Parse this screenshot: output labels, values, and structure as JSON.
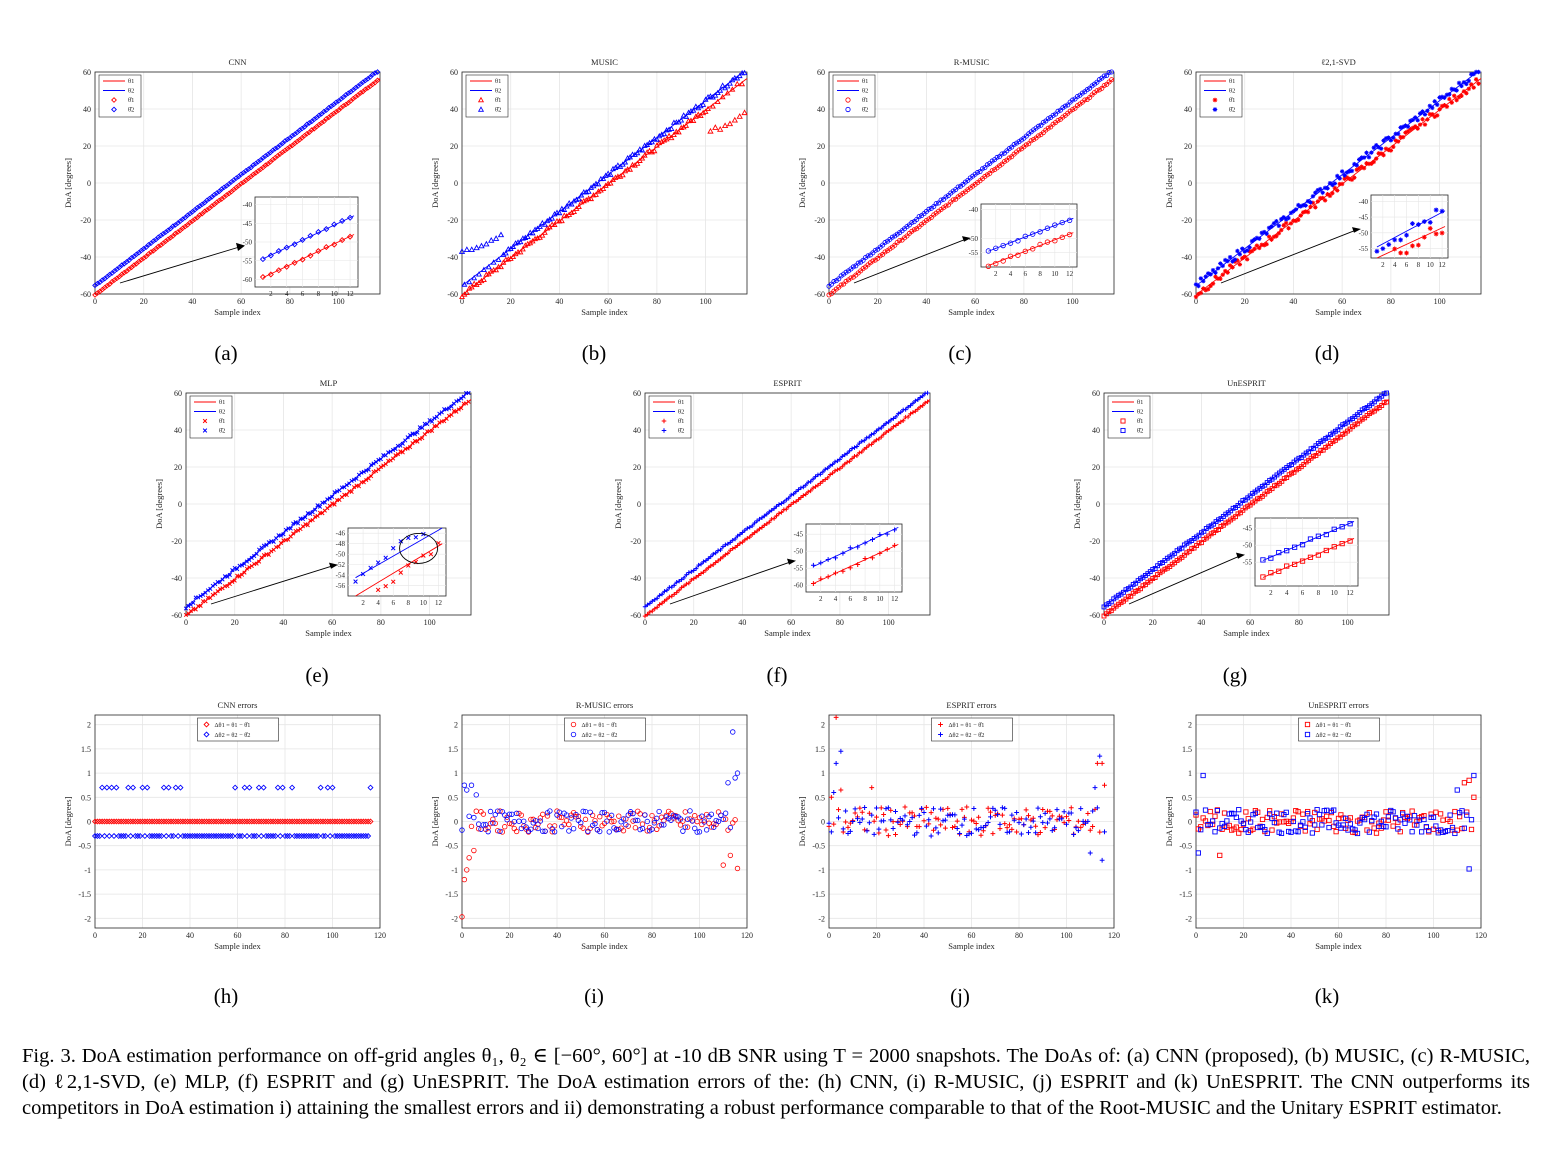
{
  "figure": {
    "caption": "Fig. 3.    DoA estimation performance on off-grid angles θ₁, θ₂ ∈ [−60°, 60°] at -10 dB SNR using T = 2000 snapshots. The DoAs of: (a) CNN (proposed), (b) MUSIC, (c) R-MUSIC, (d) ℓ2,1-SVD, (e) MLP, (f) ESPRIT and (g) UnESPRIT. The DoA estimation errors of the: (h) CNN, (i) R-MUSIC, (j) ESPRIT and (k) UnESPRIT. The CNN outperforms its competitors in DoA estimation i) attaining the smallest errors and ii) demonstrating a robust performance comparable to that of the Root-MUSIC and the Unitary ESPRIT estimator."
  },
  "colors": {
    "theta1": "#ff0000",
    "theta2": "#0000ff",
    "grid": "#e6e6e6",
    "axis": "#262626"
  },
  "chart_data": [
    {
      "panel": "(a)",
      "type": "scatter",
      "title": "CNN",
      "xlabel": "Sample index",
      "ylabel": "DoA [degrees]",
      "xlim": [
        0,
        117
      ],
      "ylim": [
        -60,
        60
      ],
      "xticks": [
        0,
        20,
        40,
        60,
        80,
        100
      ],
      "yticks": [
        -60,
        -40,
        -20,
        0,
        20,
        40,
        60
      ],
      "marker": "diamond",
      "legend": [
        "θ1",
        "θ2",
        "θ̂1",
        "θ̂2"
      ],
      "legend_position": "top-left",
      "series": [
        {
          "name": "θ1",
          "slope": 1.0,
          "intercept": -60.5,
          "noise": 0.2
        },
        {
          "name": "θ2",
          "slope": 1.0,
          "intercept": -55.5,
          "noise": 0.2
        }
      ],
      "inset": {
        "xlim": [
          0,
          13
        ],
        "ylim": [
          -62,
          -38
        ],
        "xticks": [
          2,
          4,
          6,
          8,
          10,
          12
        ],
        "yticks": [
          -40,
          -45,
          -50,
          -55,
          -60
        ]
      }
    },
    {
      "panel": "(b)",
      "type": "scatter",
      "title": "MUSIC",
      "xlabel": "Sample index",
      "ylabel": "DoA [degrees]",
      "xlim": [
        0,
        117
      ],
      "ylim": [
        -60,
        60
      ],
      "xticks": [
        0,
        20,
        40,
        60,
        80,
        100
      ],
      "yticks": [
        -60,
        -40,
        -20,
        0,
        20,
        40,
        60
      ],
      "marker": "triangle",
      "legend": [
        "θ1",
        "θ2",
        "θ̂1",
        "θ̂2"
      ],
      "legend_position": "top-left",
      "series": [
        {
          "name": "θ1",
          "slope": 1.0,
          "intercept": -60.5,
          "noise": 1.2,
          "outliers": [
            [
              102,
              28
            ],
            [
              104,
              30
            ],
            [
              106,
              29
            ],
            [
              108,
              31
            ],
            [
              110,
              32
            ],
            [
              112,
              34
            ],
            [
              114,
              36
            ],
            [
              116,
              38
            ]
          ]
        },
        {
          "name": "θ2",
          "slope": 1.0,
          "intercept": -55.5,
          "noise": 1.2,
          "outliers": [
            [
              0,
              -37
            ],
            [
              2,
              -36
            ],
            [
              4,
              -36
            ],
            [
              6,
              -35
            ],
            [
              8,
              -34
            ],
            [
              10,
              -33
            ],
            [
              12,
              -31
            ],
            [
              14,
              -30
            ],
            [
              16,
              -28
            ]
          ]
        }
      ]
    },
    {
      "panel": "(c)",
      "type": "scatter",
      "title": "R-MUSIC",
      "xlabel": "Sample index",
      "ylabel": "DoA [degrees]",
      "xlim": [
        0,
        117
      ],
      "ylim": [
        -60,
        60
      ],
      "xticks": [
        0,
        20,
        40,
        60,
        80,
        100
      ],
      "yticks": [
        -60,
        -40,
        -20,
        0,
        20,
        40,
        60
      ],
      "marker": "circle",
      "legend": [
        "θ1",
        "θ2",
        "θ̂1",
        "θ̂2"
      ],
      "legend_position": "top-left",
      "series": [
        {
          "name": "θ1",
          "slope": 1.0,
          "intercept": -60.5,
          "noise": 0.4
        },
        {
          "name": "θ2",
          "slope": 1.0,
          "intercept": -55.5,
          "noise": 0.4
        }
      ],
      "inset": {
        "xlim": [
          0,
          13
        ],
        "ylim": [
          -60,
          -38
        ],
        "xticks": [
          2,
          4,
          6,
          8,
          10,
          12
        ],
        "yticks": [
          -40,
          -50,
          -55
        ]
      }
    },
    {
      "panel": "(d)",
      "type": "scatter",
      "title": "ℓ2,1-SVD",
      "xlabel": "Sample index",
      "ylabel": "DoA [degrees]",
      "xlim": [
        0,
        117
      ],
      "ylim": [
        -60,
        60
      ],
      "xticks": [
        0,
        20,
        40,
        60,
        80,
        100
      ],
      "yticks": [
        -60,
        -40,
        -20,
        0,
        20,
        40,
        60
      ],
      "marker": "asterisk",
      "legend": [
        "θ1",
        "θ2",
        "θ̂1",
        "θ̂2"
      ],
      "legend_position": "top-left",
      "series": [
        {
          "name": "θ1",
          "slope": 1.0,
          "intercept": -60.5,
          "noise": 2.0
        },
        {
          "name": "θ2",
          "slope": 1.0,
          "intercept": -55.5,
          "noise": 2.0
        }
      ],
      "inset": {
        "xlim": [
          0,
          13
        ],
        "ylim": [
          -58,
          -38
        ],
        "xticks": [
          2,
          4,
          6,
          8,
          10,
          12
        ],
        "yticks": [
          -40,
          -45,
          -50,
          -55
        ]
      }
    },
    {
      "panel": "(e)",
      "type": "scatter",
      "title": "MLP",
      "xlabel": "Sample index",
      "ylabel": "DoA [degrees]",
      "xlim": [
        0,
        117
      ],
      "ylim": [
        -60,
        60
      ],
      "xticks": [
        0,
        20,
        40,
        60,
        80,
        100
      ],
      "yticks": [
        -60,
        -40,
        -20,
        0,
        20,
        40,
        60
      ],
      "marker": "x",
      "legend": [
        "θ1",
        "θ2",
        "θ̂1",
        "θ̂2"
      ],
      "legend_position": "top-left",
      "series": [
        {
          "name": "θ1",
          "slope": 1.0,
          "intercept": -60.5,
          "noise": 1.0
        },
        {
          "name": "θ2",
          "slope": 1.0,
          "intercept": -55.5,
          "noise": 1.0
        }
      ],
      "inset": {
        "xlim": [
          0,
          13
        ],
        "ylim": [
          -58,
          -45
        ],
        "xticks": [
          2,
          4,
          6,
          8,
          10,
          12
        ],
        "yticks": [
          -46,
          -48,
          -50,
          -52,
          -54,
          -56
        ]
      }
    },
    {
      "panel": "(f)",
      "type": "scatter",
      "title": "ESPRIT",
      "xlabel": "Sample index",
      "ylabel": "DoA [degrees]",
      "xlim": [
        0,
        117
      ],
      "ylim": [
        -60,
        60
      ],
      "xticks": [
        0,
        20,
        40,
        60,
        80,
        100
      ],
      "yticks": [
        -60,
        -40,
        -20,
        0,
        20,
        40,
        60
      ],
      "marker": "plus",
      "legend": [
        "θ1",
        "θ2",
        "θ̂1",
        "θ̂2"
      ],
      "legend_position": "top-left",
      "series": [
        {
          "name": "θ1",
          "slope": 1.0,
          "intercept": -60.5,
          "noise": 0.5
        },
        {
          "name": "θ2",
          "slope": 1.0,
          "intercept": -55.5,
          "noise": 0.5
        }
      ],
      "inset": {
        "xlim": [
          0,
          13
        ],
        "ylim": [
          -62,
          -42
        ],
        "xticks": [
          2,
          4,
          6,
          8,
          10,
          12
        ],
        "yticks": [
          -45,
          -50,
          -55,
          -60
        ]
      }
    },
    {
      "panel": "(g)",
      "type": "scatter",
      "title": "UnESPRIT",
      "xlabel": "Sample index",
      "ylabel": "DoA [degrees]",
      "xlim": [
        0,
        117
      ],
      "ylim": [
        -60,
        60
      ],
      "xticks": [
        0,
        20,
        40,
        60,
        80,
        100
      ],
      "yticks": [
        -60,
        -40,
        -20,
        0,
        20,
        40,
        60
      ],
      "marker": "square",
      "legend": [
        "θ1",
        "θ2",
        "θ̂1",
        "θ̂2"
      ],
      "legend_position": "top-left",
      "series": [
        {
          "name": "θ1",
          "slope": 1.0,
          "intercept": -60.5,
          "noise": 0.4
        },
        {
          "name": "θ2",
          "slope": 1.0,
          "intercept": -55.5,
          "noise": 0.4
        }
      ],
      "inset": {
        "xlim": [
          0,
          13
        ],
        "ylim": [
          -62,
          -42
        ],
        "xticks": [
          2,
          4,
          6,
          8,
          10,
          12
        ],
        "yticks": [
          -45,
          -50,
          -55
        ]
      }
    },
    {
      "panel": "(h)",
      "type": "scatter",
      "title": "CNN errors",
      "xlabel": "Sample index",
      "ylabel": "DoA [degrees]",
      "xlim": [
        0,
        120
      ],
      "ylim": [
        -2.2,
        2.2
      ],
      "xticks": [
        0,
        20,
        40,
        60,
        80,
        100,
        120
      ],
      "yticks": [
        -2,
        -1.5,
        -1,
        -0.5,
        0,
        0.5,
        1,
        1.5,
        2
      ],
      "marker": "diamond",
      "legend": [
        "Δθ1 = θ1 − θ̂1",
        "Δθ2 = θ2 − θ̂2"
      ],
      "legend_position": "top-center",
      "series": [
        {
          "name": "Δθ1",
          "pattern": "zero"
        },
        {
          "name": "Δθ2",
          "pattern": "bimodal",
          "high": 0.7,
          "low": -0.3
        }
      ]
    },
    {
      "panel": "(i)",
      "type": "scatter",
      "title": "R-MUSIC errors",
      "xlabel": "Sample index",
      "ylabel": "DoA [degrees]",
      "xlim": [
        0,
        120
      ],
      "ylim": [
        -2.2,
        2.2
      ],
      "xticks": [
        0,
        20,
        40,
        60,
        80,
        100,
        120
      ],
      "yticks": [
        -2,
        -1.5,
        -1,
        -0.5,
        0,
        0.5,
        1,
        1.5,
        2
      ],
      "marker": "circle",
      "legend": [
        "Δθ1 = θ1 − θ̂1",
        "Δθ2 = θ2 − θ̂2"
      ],
      "legend_position": "top-center",
      "series": [
        {
          "name": "Δθ1",
          "pattern": "noise",
          "amp": 0.22,
          "edge": [
            [
              0,
              -1.97
            ],
            [
              1,
              -1.2
            ],
            [
              2,
              -1.0
            ],
            [
              3,
              -0.75
            ],
            [
              5,
              -0.6
            ],
            [
              110,
              -0.9
            ],
            [
              113,
              -0.7
            ],
            [
              116,
              -0.97
            ]
          ]
        },
        {
          "name": "Δθ2",
          "pattern": "noise",
          "amp": 0.22,
          "edge": [
            [
              1,
              0.75
            ],
            [
              2,
              0.65
            ],
            [
              4,
              0.75
            ],
            [
              6,
              0.55
            ],
            [
              112,
              0.8
            ],
            [
              114,
              1.85
            ],
            [
              116,
              1.0
            ],
            [
              115,
              0.9
            ]
          ]
        }
      ]
    },
    {
      "panel": "(j)",
      "type": "scatter",
      "title": "ESPRIT errors",
      "xlabel": "Sample index",
      "ylabel": "DoA [degrees]",
      "xlim": [
        0,
        120
      ],
      "ylim": [
        -2.2,
        2.2
      ],
      "xticks": [
        0,
        20,
        40,
        60,
        80,
        100,
        120
      ],
      "yticks": [
        -2,
        -1.5,
        -1,
        -0.5,
        0,
        0.5,
        1,
        1.5,
        2
      ],
      "marker": "plus",
      "legend": [
        "Δθ1 = θ1 − θ̂1",
        "Δθ2 = θ2 − θ̂2"
      ],
      "legend_position": "top-center",
      "series": [
        {
          "name": "Δθ1",
          "pattern": "noise",
          "amp": 0.3,
          "edge": [
            [
              3,
              2.15
            ],
            [
              1,
              0.5
            ],
            [
              5,
              0.65
            ],
            [
              18,
              0.7
            ],
            [
              113,
              1.2
            ],
            [
              116,
              0.75
            ],
            [
              115,
              1.2
            ]
          ]
        },
        {
          "name": "Δθ2",
          "pattern": "noise",
          "amp": 0.3,
          "edge": [
            [
              5,
              1.45
            ],
            [
              3,
              1.2
            ],
            [
              2,
              0.6
            ],
            [
              114,
              1.35
            ],
            [
              112,
              0.7
            ],
            [
              110,
              -0.65
            ],
            [
              115,
              -0.8
            ]
          ]
        }
      ]
    },
    {
      "panel": "(k)",
      "type": "scatter",
      "title": "UnESPRIT errors",
      "xlabel": "Sample index",
      "ylabel": "DoA [degrees]",
      "xlim": [
        0,
        120
      ],
      "ylim": [
        -2.2,
        2.2
      ],
      "xticks": [
        0,
        20,
        40,
        60,
        80,
        100,
        120
      ],
      "yticks": [
        -2,
        -1.5,
        -1,
        -0.5,
        0,
        0.5,
        1,
        1.5,
        2
      ],
      "marker": "square",
      "legend": [
        "Δθ1 = θ1 − θ̂1",
        "Δθ2 = θ2 − θ̂2"
      ],
      "legend_position": "top-center",
      "series": [
        {
          "name": "Δθ1",
          "pattern": "noise",
          "amp": 0.25,
          "edge": [
            [
              10,
              -0.7
            ],
            [
              115,
              0.85
            ],
            [
              117,
              0.5
            ],
            [
              113,
              0.8
            ]
          ]
        },
        {
          "name": "Δθ2",
          "pattern": "noise",
          "amp": 0.25,
          "edge": [
            [
              1,
              -0.65
            ],
            [
              3,
              0.95
            ],
            [
              117,
              0.95
            ],
            [
              115,
              -0.98
            ],
            [
              110,
              0.65
            ]
          ]
        }
      ]
    }
  ]
}
